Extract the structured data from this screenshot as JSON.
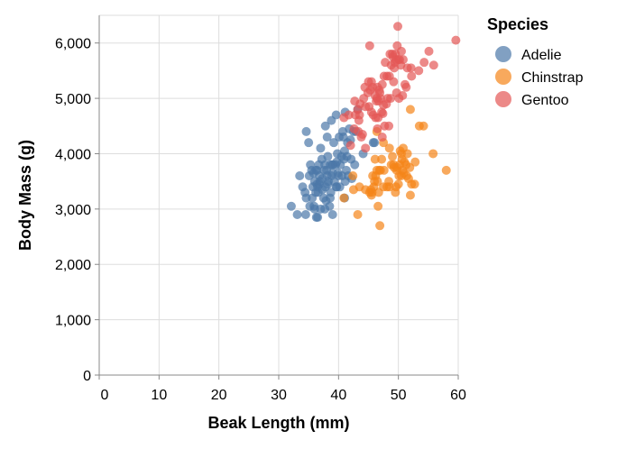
{
  "chart_data": {
    "type": "scatter",
    "title": "",
    "xlabel": "Beak Length (mm)",
    "ylabel": "Body Mass (g)",
    "xlim": [
      0,
      60
    ],
    "ylim": [
      0,
      6500
    ],
    "x_ticks": [
      0,
      10,
      20,
      30,
      40,
      50,
      60
    ],
    "y_ticks": [
      0,
      1000,
      2000,
      3000,
      4000,
      5000,
      6000
    ],
    "x_tick_labels": [
      "0",
      "10",
      "20",
      "30",
      "40",
      "50",
      "60"
    ],
    "y_tick_labels": [
      "0",
      "1,000",
      "2,000",
      "3,000",
      "4,000",
      "5,000",
      "6,000"
    ],
    "grid": true,
    "legend": {
      "title": "Species",
      "placement": "right"
    },
    "series": [
      {
        "name": "Adelie",
        "color": "#4c78a8",
        "points": [
          [
            32.1,
            3050
          ],
          [
            33.1,
            2900
          ],
          [
            33.5,
            3600
          ],
          [
            34.0,
            3400
          ],
          [
            34.4,
            3300
          ],
          [
            34.5,
            2900
          ],
          [
            34.6,
            4400
          ],
          [
            34.6,
            3200
          ],
          [
            35.0,
            4200
          ],
          [
            35.1,
            3600
          ],
          [
            35.2,
            3050
          ],
          [
            35.3,
            3800
          ],
          [
            35.5,
            3700
          ],
          [
            35.6,
            3200
          ],
          [
            35.7,
            3400
          ],
          [
            35.9,
            3050
          ],
          [
            36.0,
            3500
          ],
          [
            36.0,
            3000
          ],
          [
            36.2,
            3300
          ],
          [
            36.2,
            3700
          ],
          [
            36.3,
            2850
          ],
          [
            36.4,
            3450
          ],
          [
            36.5,
            2850
          ],
          [
            36.5,
            3400
          ],
          [
            36.6,
            3300
          ],
          [
            36.7,
            3800
          ],
          [
            36.8,
            3600
          ],
          [
            36.9,
            3500
          ],
          [
            37.0,
            3000
          ],
          [
            37.2,
            3900
          ],
          [
            37.3,
            3350
          ],
          [
            37.3,
            3550
          ],
          [
            37.5,
            3200
          ],
          [
            37.6,
            3700
          ],
          [
            37.7,
            3800
          ],
          [
            37.7,
            3000
          ],
          [
            37.8,
            3400
          ],
          [
            37.8,
            4500
          ],
          [
            37.9,
            3150
          ],
          [
            38.0,
            3700
          ],
          [
            38.1,
            3600
          ],
          [
            38.1,
            4300
          ],
          [
            38.2,
            3950
          ],
          [
            38.3,
            3500
          ],
          [
            38.5,
            3050
          ],
          [
            38.6,
            3800
          ],
          [
            38.7,
            3300
          ],
          [
            38.8,
            3600
          ],
          [
            38.8,
            4600
          ],
          [
            38.9,
            3800
          ],
          [
            39.0,
            2900
          ],
          [
            39.0,
            3650
          ],
          [
            39.1,
            3800
          ],
          [
            39.2,
            4200
          ],
          [
            39.3,
            3500
          ],
          [
            39.5,
            3800
          ],
          [
            39.6,
            3400
          ],
          [
            39.6,
            4700
          ],
          [
            39.7,
            3850
          ],
          [
            39.8,
            4000
          ],
          [
            39.9,
            3650
          ],
          [
            40.2,
            3400
          ],
          [
            40.3,
            3800
          ],
          [
            40.5,
            3950
          ],
          [
            40.6,
            3600
          ],
          [
            40.7,
            4400
          ],
          [
            40.8,
            4300
          ],
          [
            40.9,
            3900
          ],
          [
            41.0,
            4050
          ],
          [
            41.1,
            3500
          ],
          [
            41.1,
            4750
          ],
          [
            41.3,
            3700
          ],
          [
            41.4,
            3950
          ],
          [
            41.5,
            4200
          ],
          [
            41.6,
            3600
          ],
          [
            41.8,
            4450
          ],
          [
            42.0,
            4250
          ],
          [
            42.1,
            3900
          ],
          [
            42.2,
            3550
          ],
          [
            42.5,
            4400
          ],
          [
            42.7,
            3800
          ],
          [
            42.9,
            4400
          ],
          [
            43.2,
            4800
          ],
          [
            44.1,
            4000
          ],
          [
            45.8,
            4200
          ],
          [
            46.0,
            4200
          ],
          [
            36.4,
            3700
          ],
          [
            37.0,
            4100
          ],
          [
            38.2,
            3450
          ],
          [
            39.7,
            3400
          ],
          [
            40.1,
            4300
          ],
          [
            35.8,
            3650
          ],
          [
            36.8,
            3450
          ],
          [
            38.6,
            3200
          ],
          [
            40.0,
            3600
          ],
          [
            41.0,
            3200
          ]
        ]
      },
      {
        "name": "Chinstrap",
        "color": "#f58518",
        "points": [
          [
            40.9,
            3200
          ],
          [
            42.4,
            3600
          ],
          [
            42.5,
            3350
          ],
          [
            43.2,
            2900
          ],
          [
            43.5,
            3400
          ],
          [
            44.5,
            3350
          ],
          [
            45.2,
            3300
          ],
          [
            45.4,
            3350
          ],
          [
            45.5,
            3250
          ],
          [
            45.6,
            3300
          ],
          [
            45.7,
            3600
          ],
          [
            45.9,
            3400
          ],
          [
            46.0,
            3500
          ],
          [
            46.1,
            3900
          ],
          [
            46.2,
            3600
          ],
          [
            46.4,
            3700
          ],
          [
            46.5,
            3500
          ],
          [
            46.6,
            3050
          ],
          [
            46.7,
            3300
          ],
          [
            46.8,
            3700
          ],
          [
            46.9,
            2700
          ],
          [
            47.0,
            3700
          ],
          [
            47.2,
            3900
          ],
          [
            47.5,
            3400
          ],
          [
            47.6,
            3700
          ],
          [
            48.1,
            3400
          ],
          [
            48.4,
            3500
          ],
          [
            48.5,
            3400
          ],
          [
            48.8,
            3800
          ],
          [
            49.0,
            3950
          ],
          [
            49.2,
            3800
          ],
          [
            49.3,
            3750
          ],
          [
            49.5,
            3300
          ],
          [
            49.6,
            3400
          ],
          [
            49.7,
            3700
          ],
          [
            49.8,
            3750
          ],
          [
            50.0,
            3450
          ],
          [
            50.1,
            3600
          ],
          [
            50.2,
            3800
          ],
          [
            50.3,
            4050
          ],
          [
            50.5,
            3600
          ],
          [
            50.6,
            3900
          ],
          [
            50.7,
            3700
          ],
          [
            50.8,
            4100
          ],
          [
            50.9,
            3650
          ],
          [
            51.0,
            3850
          ],
          [
            51.3,
            3800
          ],
          [
            51.4,
            3600
          ],
          [
            51.5,
            4000
          ],
          [
            51.7,
            3550
          ],
          [
            51.9,
            3750
          ],
          [
            52.0,
            3250
          ],
          [
            52.2,
            3450
          ],
          [
            52.7,
            3450
          ],
          [
            52.8,
            3850
          ],
          [
            53.5,
            4500
          ],
          [
            54.2,
            4500
          ],
          [
            55.8,
            4000
          ],
          [
            58.0,
            3700
          ],
          [
            52.0,
            4800
          ],
          [
            48.5,
            4100
          ],
          [
            47.5,
            4200
          ],
          [
            46.4,
            4400
          ],
          [
            50.5,
            4000
          ]
        ]
      },
      {
        "name": "Gentoo",
        "color": "#e45756",
        "points": [
          [
            40.9,
            4650
          ],
          [
            41.7,
            4700
          ],
          [
            42.0,
            4150
          ],
          [
            42.6,
            4450
          ],
          [
            42.7,
            4950
          ],
          [
            42.8,
            4700
          ],
          [
            43.2,
            4800
          ],
          [
            43.3,
            4400
          ],
          [
            43.4,
            4600
          ],
          [
            43.5,
            4700
          ],
          [
            43.6,
            4900
          ],
          [
            44.0,
            4350
          ],
          [
            44.4,
            5200
          ],
          [
            44.5,
            4850
          ],
          [
            44.9,
            5100
          ],
          [
            45.0,
            5300
          ],
          [
            45.1,
            4850
          ],
          [
            45.2,
            5950
          ],
          [
            45.3,
            5150
          ],
          [
            45.5,
            4750
          ],
          [
            45.7,
            5200
          ],
          [
            45.8,
            4700
          ],
          [
            46.1,
            5050
          ],
          [
            46.2,
            4650
          ],
          [
            46.3,
            4950
          ],
          [
            46.4,
            5000
          ],
          [
            46.5,
            5200
          ],
          [
            46.6,
            4650
          ],
          [
            46.7,
            4950
          ],
          [
            46.8,
            5150
          ],
          [
            46.9,
            5100
          ],
          [
            47.2,
            4750
          ],
          [
            47.3,
            5250
          ],
          [
            47.4,
            4725
          ],
          [
            47.5,
            4875
          ],
          [
            47.6,
            5400
          ],
          [
            47.7,
            4500
          ],
          [
            47.8,
            5650
          ],
          [
            48.1,
            5400
          ],
          [
            48.2,
            5000
          ],
          [
            48.4,
            4500
          ],
          [
            48.5,
            5400
          ],
          [
            48.6,
            5800
          ],
          [
            48.7,
            5000
          ],
          [
            48.8,
            5600
          ],
          [
            49.0,
            5800
          ],
          [
            49.1,
            5750
          ],
          [
            49.2,
            5300
          ],
          [
            49.3,
            5550
          ],
          [
            49.4,
            5650
          ],
          [
            49.5,
            5800
          ],
          [
            49.6,
            5700
          ],
          [
            49.8,
            5950
          ],
          [
            49.9,
            6300
          ],
          [
            50.0,
            5700
          ],
          [
            50.1,
            5000
          ],
          [
            50.2,
            5700
          ],
          [
            50.4,
            5600
          ],
          [
            50.5,
            5850
          ],
          [
            50.7,
            5050
          ],
          [
            50.8,
            5700
          ],
          [
            51.1,
            5250
          ],
          [
            51.3,
            5200
          ],
          [
            51.5,
            5550
          ],
          [
            52.1,
            5550
          ],
          [
            52.2,
            5400
          ],
          [
            53.4,
            5500
          ],
          [
            54.3,
            5650
          ],
          [
            55.1,
            5850
          ],
          [
            55.9,
            5600
          ],
          [
            59.6,
            6050
          ],
          [
            44.5,
            4100
          ],
          [
            45.5,
            5300
          ],
          [
            46.5,
            4450
          ],
          [
            47.0,
            5000
          ],
          [
            48.0,
            4900
          ],
          [
            43.8,
            4300
          ],
          [
            44.2,
            5000
          ],
          [
            47.3,
            4300
          ],
          [
            49.7,
            5100
          ]
        ]
      }
    ]
  }
}
